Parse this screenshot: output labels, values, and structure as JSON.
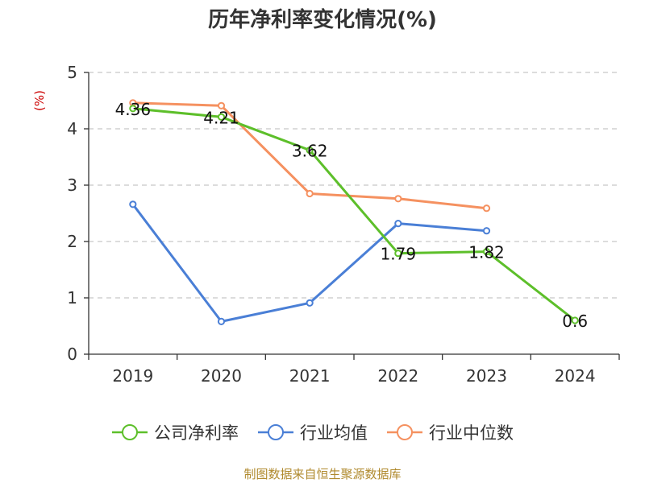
{
  "chart_data": {
    "type": "line",
    "title": "历年净利率变化情况(%)",
    "ylabel": "(%)",
    "xlabel": "",
    "categories": [
      "2019",
      "2020",
      "2021",
      "2022",
      "2023",
      "2024"
    ],
    "ylim": [
      0,
      5
    ],
    "yticks": [
      "0",
      "1",
      "2",
      "3",
      "4",
      "5"
    ],
    "grid": true,
    "legend_position": "bottom",
    "series": [
      {
        "name": "公司净利率",
        "color": "#5dbf2a",
        "values": [
          4.36,
          4.21,
          3.62,
          1.79,
          1.82,
          0.6
        ],
        "labels": [
          "4.36",
          "4.21",
          "3.62",
          "1.79",
          "1.82",
          "0.6"
        ]
      },
      {
        "name": "行业均值",
        "color": "#4a7fd6",
        "values": [
          2.66,
          0.58,
          0.91,
          2.32,
          2.19,
          null
        ],
        "labels": []
      },
      {
        "name": "行业中位数",
        "color": "#f59160",
        "values": [
          4.46,
          4.41,
          2.85,
          2.76,
          2.59,
          null
        ],
        "labels": []
      }
    ]
  },
  "footer": {
    "source": "制图数据来自恒生聚源数据库"
  }
}
